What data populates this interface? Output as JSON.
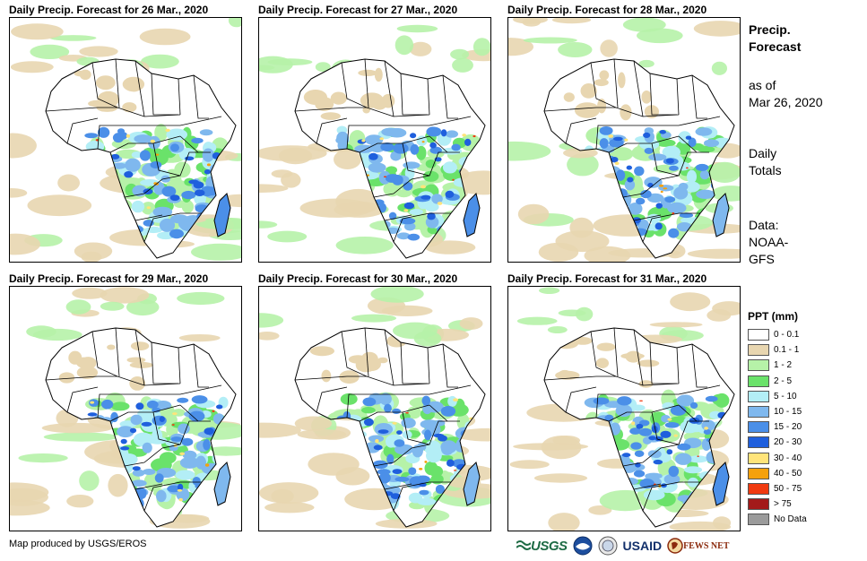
{
  "panels": [
    {
      "title": "Daily Precip. Forecast for 26 Mar., 2020"
    },
    {
      "title": "Daily Precip. Forecast for 27 Mar., 2020"
    },
    {
      "title": "Daily Precip. Forecast for 28 Mar., 2020"
    },
    {
      "title": "Daily Precip. Forecast for 29 Mar., 2020"
    },
    {
      "title": "Daily Precip. Forecast for 30 Mar., 2020"
    },
    {
      "title": "Daily Precip. Forecast for 31 Mar., 2020"
    }
  ],
  "side": {
    "title_line1": "Precip.",
    "title_line2": "Forecast",
    "asof_line1": "as of",
    "asof_line2": "Mar 26, 2020",
    "daily_line1": "Daily",
    "daily_line2": "Totals",
    "data_line1": "Data:",
    "data_line2": "NOAA-",
    "data_line3": "GFS"
  },
  "legend": {
    "title": "PPT (mm)",
    "items": [
      {
        "label": "0 - 0.1",
        "color": "#ffffff"
      },
      {
        "label": "0.1 - 1",
        "color": "#e8d6b0"
      },
      {
        "label": "1 - 2",
        "color": "#b6f2a8"
      },
      {
        "label": "2 - 5",
        "color": "#6ae26a"
      },
      {
        "label": "5 - 10",
        "color": "#b3eef6"
      },
      {
        "label": "10 - 15",
        "color": "#7fb8ee"
      },
      {
        "label": "15 - 20",
        "color": "#4b8fe8"
      },
      {
        "label": "20 - 30",
        "color": "#1f5fdd"
      },
      {
        "label": "30 - 40",
        "color": "#ffe47a"
      },
      {
        "label": "40 - 50",
        "color": "#f5a10c"
      },
      {
        "label": "50 - 75",
        "color": "#f03a10"
      },
      {
        "label": "> 75",
        "color": "#a31a1a"
      },
      {
        "label": "No Data",
        "color": "#9b9b9b"
      }
    ]
  },
  "footer": {
    "credit": "Map produced by USGS/EROS"
  },
  "logos": {
    "usgs": "USGS",
    "usaid": "USAID",
    "fews": "FEWS NET"
  }
}
